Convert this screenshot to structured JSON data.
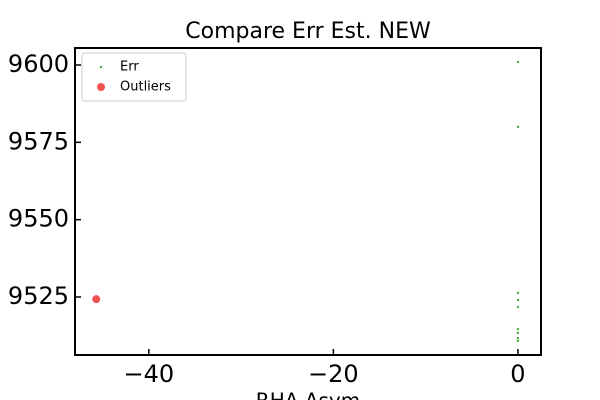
{
  "chart_data": {
    "type": "scatter",
    "title": "Compare Err Est. NEW",
    "x_label": "RHA Asym",
    "series": [
      {
        "name": "Err",
        "color": "#2ca02c",
        "size": 1.2,
        "x": [
          0,
          0,
          0,
          0,
          0,
          0,
          0,
          0,
          0
        ],
        "y": [
          9601,
          9580,
          9526.3,
          9524,
          9521.8,
          9514.6,
          9513.4,
          9511.7,
          9510.8
        ]
      },
      {
        "name": "Outliers",
        "color": "#f04040",
        "size": 4,
        "x": [
          -45.7
        ],
        "y": [
          9524.3
        ]
      }
    ],
    "xlim": [
      -48,
      2.5
    ],
    "xticks": [
      {
        "value": -40,
        "label": "−40"
      },
      {
        "value": -20,
        "label": "−20"
      },
      0
    ],
    "ylim": [
      9506.25,
      9605.5
    ],
    "yticks": [
      9525,
      9550,
      9575,
      9600
    ],
    "legend": "upper-left"
  }
}
